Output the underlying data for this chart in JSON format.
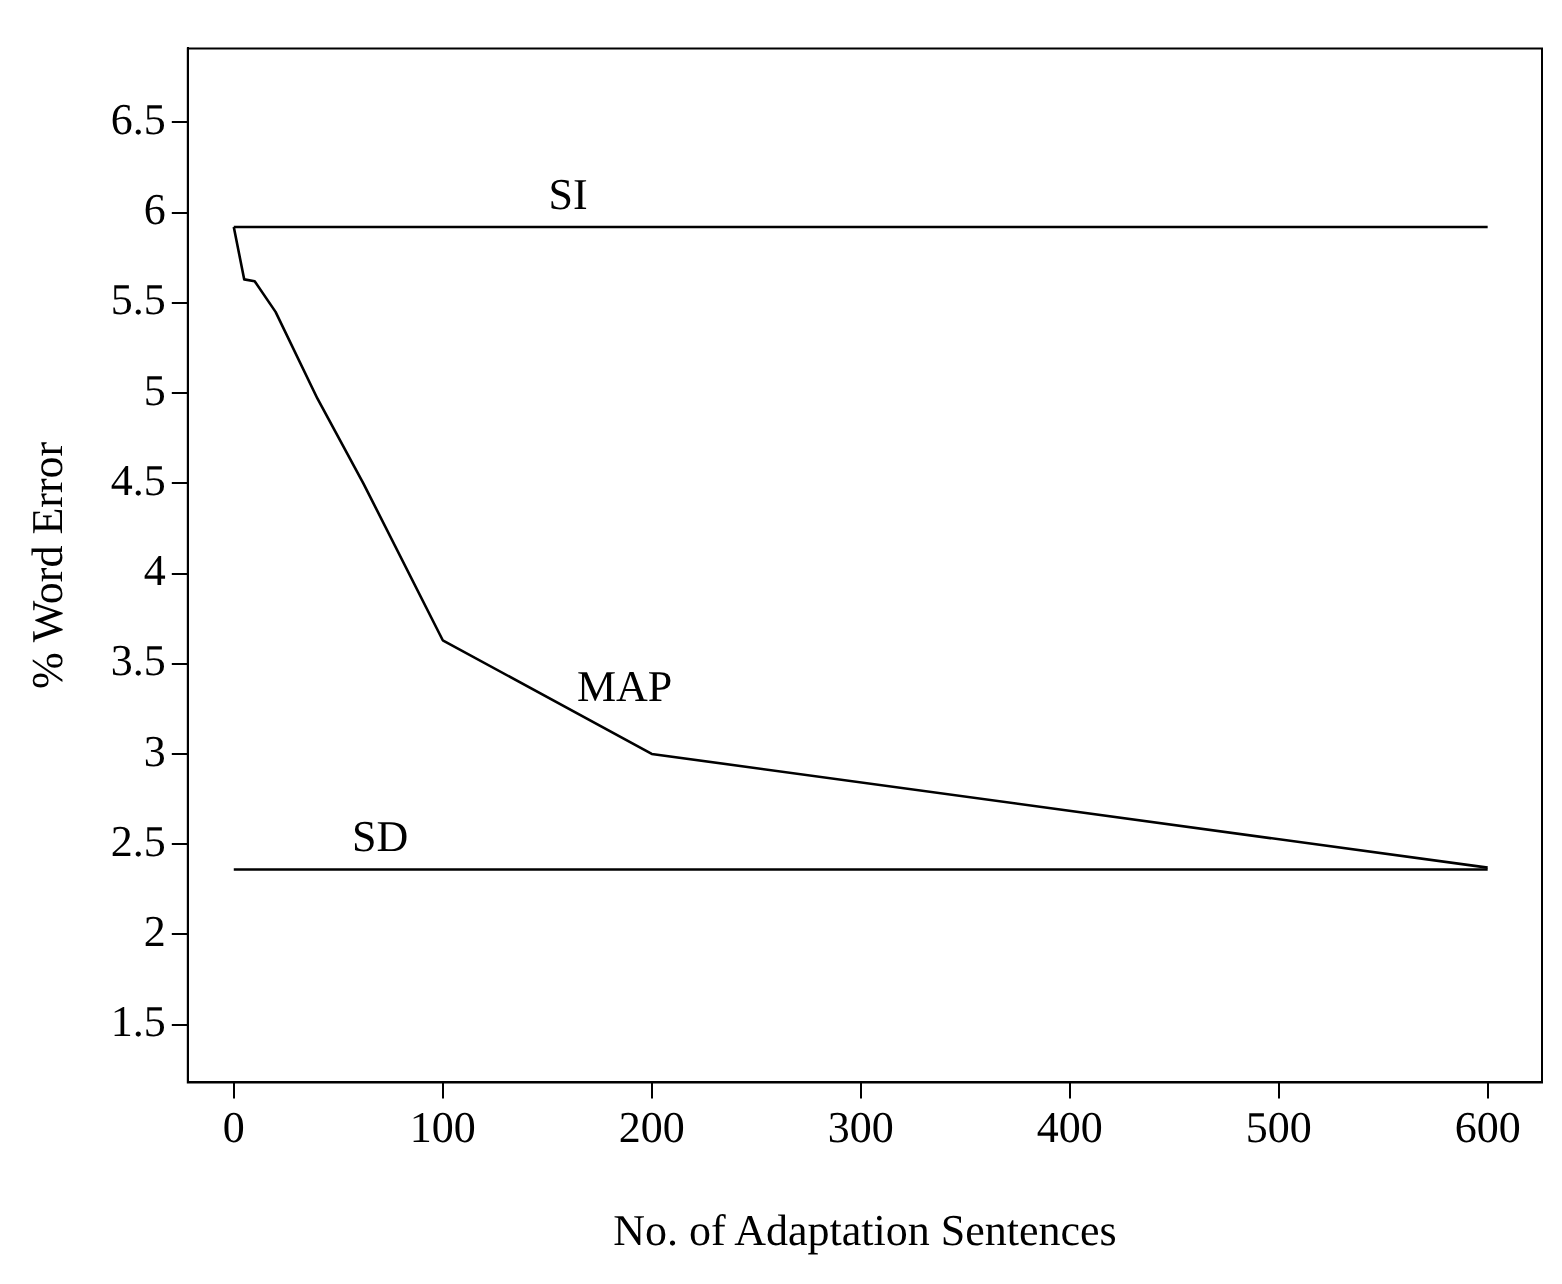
{
  "chart_data": {
    "type": "line",
    "xlabel": "No. of Adaptation Sentences",
    "ylabel": "% Word Error",
    "xlim": [
      -22,
      626
    ],
    "ylim": [
      1.18,
      6.91
    ],
    "xticks": [
      0,
      100,
      200,
      300,
      400,
      500,
      600
    ],
    "yticks": [
      1.5,
      2,
      2.5,
      3,
      3.5,
      4,
      4.5,
      5,
      5.5,
      6,
      6.5
    ],
    "grid": false,
    "legend": false,
    "marker": "none",
    "line_style": "solid",
    "series": [
      {
        "name": "SI",
        "color": "#000000",
        "x": [
          0,
          600
        ],
        "values": [
          5.92,
          5.92
        ]
      },
      {
        "name": "MAP",
        "color": "#000000",
        "x": [
          0,
          5,
          10,
          20,
          40,
          62,
          100,
          200,
          600
        ],
        "values": [
          5.92,
          5.63,
          5.62,
          5.45,
          4.97,
          4.5,
          3.63,
          3.0,
          2.37
        ]
      },
      {
        "name": "SD",
        "color": "#000000",
        "x": [
          0,
          600
        ],
        "values": [
          2.36,
          2.36
        ]
      }
    ]
  }
}
